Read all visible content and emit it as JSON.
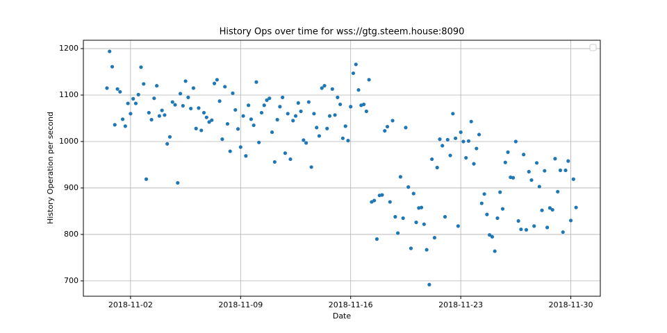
{
  "chart_data": {
    "type": "scatter",
    "title": "History Ops over time for wss://gtg.steem.house:8090",
    "x_label": "Date",
    "y_label": "History Operation per second",
    "color": "#1f77b4",
    "grid": true,
    "xlim": [
      "2018-10-30T00:00",
      "2018-12-01T21:00"
    ],
    "xticks": [
      "2018-11-02",
      "2018-11-09",
      "2018-11-16",
      "2018-11-23",
      "2018-11-30"
    ],
    "ylim": [
      667,
      1218
    ],
    "yticks": [
      700,
      800,
      900,
      1000,
      1100,
      1200
    ],
    "x": [
      "2018-10-31T12:00",
      "2018-10-31T16:00",
      "2018-10-31T20:00",
      "2018-11-01T00:00",
      "2018-11-01T04:00",
      "2018-11-01T08:00",
      "2018-11-01T12:00",
      "2018-11-01T16:00",
      "2018-11-01T20:00",
      "2018-11-02T00:00",
      "2018-11-02T04:00",
      "2018-11-02T08:00",
      "2018-11-02T12:00",
      "2018-11-02T16:00",
      "2018-11-02T20:00",
      "2018-11-03T00:00",
      "2018-11-03T04:00",
      "2018-11-03T08:00",
      "2018-11-03T12:00",
      "2018-11-03T16:00",
      "2018-11-03T20:00",
      "2018-11-04T00:00",
      "2018-11-04T04:00",
      "2018-11-04T08:00",
      "2018-11-04T12:00",
      "2018-11-04T16:00",
      "2018-11-04T20:00",
      "2018-11-05T00:00",
      "2018-11-05T04:00",
      "2018-11-05T08:00",
      "2018-11-05T12:00",
      "2018-11-05T16:00",
      "2018-11-05T20:00",
      "2018-11-06T00:00",
      "2018-11-06T04:00",
      "2018-11-06T08:00",
      "2018-11-06T12:00",
      "2018-11-06T16:00",
      "2018-11-06T20:00",
      "2018-11-07T00:00",
      "2018-11-07T04:00",
      "2018-11-07T08:00",
      "2018-11-07T12:00",
      "2018-11-07T16:00",
      "2018-11-07T20:00",
      "2018-11-08T00:00",
      "2018-11-08T04:00",
      "2018-11-08T08:00",
      "2018-11-08T12:00",
      "2018-11-08T16:00",
      "2018-11-08T20:00",
      "2018-11-09T00:00",
      "2018-11-09T04:00",
      "2018-11-09T08:00",
      "2018-11-09T12:00",
      "2018-11-09T16:00",
      "2018-11-09T20:00",
      "2018-11-10T00:00",
      "2018-11-10T04:00",
      "2018-11-10T08:00",
      "2018-11-10T12:00",
      "2018-11-10T16:00",
      "2018-11-10T20:00",
      "2018-11-11T00:00",
      "2018-11-11T04:00",
      "2018-11-11T08:00",
      "2018-11-11T12:00",
      "2018-11-11T16:00",
      "2018-11-11T20:00",
      "2018-11-12T00:00",
      "2018-11-12T04:00",
      "2018-11-12T08:00",
      "2018-11-12T12:00",
      "2018-11-12T16:00",
      "2018-11-12T20:00",
      "2018-11-13T00:00",
      "2018-11-13T04:00",
      "2018-11-13T08:00",
      "2018-11-13T12:00",
      "2018-11-13T16:00",
      "2018-11-13T20:00",
      "2018-11-14T00:00",
      "2018-11-14T04:00",
      "2018-11-14T08:00",
      "2018-11-14T12:00",
      "2018-11-14T16:00",
      "2018-11-14T20:00",
      "2018-11-15T00:00",
      "2018-11-15T04:00",
      "2018-11-15T08:00",
      "2018-11-15T12:00",
      "2018-11-15T16:00",
      "2018-11-15T20:00",
      "2018-11-16T00:00",
      "2018-11-16T04:00",
      "2018-11-16T08:00",
      "2018-11-16T12:00",
      "2018-11-16T16:00",
      "2018-11-16T20:00",
      "2018-11-17T00:00",
      "2018-11-17T04:00",
      "2018-11-17T08:00",
      "2018-11-17T12:00",
      "2018-11-17T16:00",
      "2018-11-17T20:00",
      "2018-11-18T00:00",
      "2018-11-18T04:00",
      "2018-11-18T08:00",
      "2018-11-18T12:00",
      "2018-11-18T16:00",
      "2018-11-18T20:00",
      "2018-11-19T00:00",
      "2018-11-19T04:00",
      "2018-11-19T08:00",
      "2018-11-19T12:00",
      "2018-11-19T16:00",
      "2018-11-19T20:00",
      "2018-11-20T00:00",
      "2018-11-20T04:00",
      "2018-11-20T08:00",
      "2018-11-20T12:00",
      "2018-11-20T16:00",
      "2018-11-20T20:00",
      "2018-11-21T00:00",
      "2018-11-21T04:00",
      "2018-11-21T08:00",
      "2018-11-21T12:00",
      "2018-11-21T16:00",
      "2018-11-21T20:00",
      "2018-11-22T00:00",
      "2018-11-22T04:00",
      "2018-11-22T08:00",
      "2018-11-22T12:00",
      "2018-11-22T16:00",
      "2018-11-22T20:00",
      "2018-11-23T00:00",
      "2018-11-23T04:00",
      "2018-11-23T08:00",
      "2018-11-23T12:00",
      "2018-11-23T16:00",
      "2018-11-23T20:00",
      "2018-11-24T00:00",
      "2018-11-24T04:00",
      "2018-11-24T08:00",
      "2018-11-24T12:00",
      "2018-11-24T16:00",
      "2018-11-24T20:00",
      "2018-11-25T00:00",
      "2018-11-25T04:00",
      "2018-11-25T08:00",
      "2018-11-25T12:00",
      "2018-11-25T16:00",
      "2018-11-25T20:00",
      "2018-11-26T00:00",
      "2018-11-26T04:00",
      "2018-11-26T08:00",
      "2018-11-26T12:00",
      "2018-11-26T16:00",
      "2018-11-26T20:00",
      "2018-11-27T00:00",
      "2018-11-27T04:00",
      "2018-11-27T08:00",
      "2018-11-27T12:00",
      "2018-11-27T16:00",
      "2018-11-27T20:00",
      "2018-11-28T00:00",
      "2018-11-28T04:00",
      "2018-11-28T08:00",
      "2018-11-28T12:00",
      "2018-11-28T16:00",
      "2018-11-28T20:00",
      "2018-11-29T00:00",
      "2018-11-29T04:00",
      "2018-11-29T08:00",
      "2018-11-29T12:00",
      "2018-11-29T16:00",
      "2018-11-29T20:00",
      "2018-11-30T00:00",
      "2018-11-30T04:00",
      "2018-11-30T08:00"
    ],
    "values": [
      1115,
      1194,
      1161,
      1036,
      1113,
      1107,
      1048,
      1033,
      1082,
      1060,
      1092,
      1082,
      1101,
      1160,
      1124,
      919,
      1062,
      1047,
      1093,
      1120,
      1055,
      1067,
      1057,
      995,
      1010,
      1085,
      1079,
      911,
      1103,
      1077,
      1130,
      1095,
      1071,
      1115,
      1028,
      1072,
      1024,
      1062,
      1052,
      1042,
      1046,
      1125,
      1133,
      1087,
      1005,
      1118,
      1038,
      979,
      1104,
      1068,
      1027,
      988,
      1055,
      969,
      1078,
      1048,
      1035,
      1128,
      998,
      1062,
      1078,
      1089,
      1093,
      1020,
      956,
      1047,
      1075,
      1095,
      975,
      1060,
      962,
      1045,
      1055,
      1083,
      1065,
      1003,
      997,
      1085,
      945,
      1060,
      1030,
      1012,
      1115,
      1120,
      1028,
      1055,
      1113,
      1057,
      1095,
      1080,
      1007,
      1033,
      1002,
      1075,
      1147,
      1166,
      1111,
      1078,
      1080,
      1065,
      1133,
      870,
      873,
      790,
      884,
      885,
      1023,
      1032,
      870,
      1045,
      838,
      803,
      924,
      835,
      1030,
      902,
      770,
      888,
      826,
      857,
      858,
      822,
      767,
      692,
      962,
      793,
      944,
      1005,
      991,
      838,
      1004,
      970,
      1060,
      1007,
      818,
      1020,
      1000,
      965,
      1001,
      1043,
      952,
      985,
      1015,
      867,
      887,
      843,
      799,
      795,
      764,
      835,
      891,
      855,
      955,
      977,
      923,
      922,
      1000,
      829,
      811,
      972,
      810,
      935,
      917,
      818,
      954,
      903,
      852,
      937,
      815,
      857,
      853,
      963,
      892,
      938,
      805,
      938,
      958,
      830,
      919,
      858
    ]
  }
}
